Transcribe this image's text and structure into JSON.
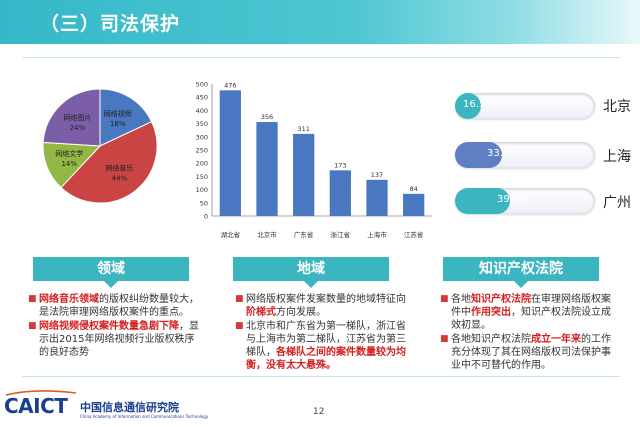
{
  "title": "（三）司法保护",
  "pie": {
    "slices": [
      {
        "label": "网络视频",
        "pct": "18%",
        "value": 18,
        "color": "#4a78c0"
      },
      {
        "label": "网络音乐",
        "pct": "44%",
        "value": 44,
        "color": "#c94442"
      },
      {
        "label": "网络文学",
        "pct": "14%",
        "value": 14,
        "color": "#93b745"
      },
      {
        "label": "网络图片",
        "pct": "24%",
        "value": 24,
        "color": "#7b5ea7"
      }
    ]
  },
  "chart_data": {
    "type": "bar",
    "categories": [
      "湖北省",
      "北京市",
      "广东省",
      "浙江省",
      "上海市",
      "江苏省"
    ],
    "values": [
      476,
      356,
      311,
      173,
      137,
      84
    ],
    "ylim": [
      0,
      500
    ],
    "yticks": [
      "0",
      "50",
      "100",
      "150",
      "200",
      "250",
      "300",
      "350",
      "400",
      "450",
      "500"
    ],
    "color": "#4a78c0"
  },
  "capsules": [
    {
      "label": "16.5%",
      "pct": 0.165,
      "city": "北京",
      "color": "#3bb5bf"
    },
    {
      "label": "33.5%",
      "pct": 0.335,
      "city": "上海",
      "color": "#5e7fc4"
    },
    {
      "label": "39.5%",
      "pct": 0.395,
      "city": "广州",
      "color": "#3bb5bf"
    }
  ],
  "sections": {
    "s1": {
      "title": "领域"
    },
    "s2": {
      "title": "地域"
    },
    "s3": {
      "title": "知识产权法院"
    }
  },
  "s1_b1": {
    "hl": "网络音乐领域",
    "t1": "的版权纠纷数量较大，是法院审理网络版权案件的重点。"
  },
  "s1_b2": {
    "hl": "网络视频侵权案件数量急剧下降",
    "t1": "，显示出2015年网络视频行业版权秩序的良好态势"
  },
  "s2_b1": {
    "t1": "网络版权案件发案数量的地域特征向",
    "hl": "阶梯式",
    "t2": "方向发展。"
  },
  "s2_b2": {
    "t1": "北京市和广东省为第一梯队，浙江省与上海市为第二梯队，江苏省为第三梯队，",
    "hl": "各梯队之间的案件数量较为均衡，没有太大悬殊。"
  },
  "s3_b1": {
    "t1": "各地",
    "hl1": "知识产权法院",
    "t2": "在审理网络版权案件中",
    "hl2": "作用突出",
    "t3": "，知识产权法院设立成效初显。"
  },
  "s3_b2": {
    "t1": "各地知识产权法院",
    "hl": "成立一年来",
    "t2": "的工作充分体现了其在网络版权司法保护事业中不可替代的作用。"
  },
  "footer": {
    "logo": "CAICT",
    "org_cn": "中国信息通信研究院",
    "org_en": "China Academy of Information and Communications Technology",
    "page": "12"
  }
}
